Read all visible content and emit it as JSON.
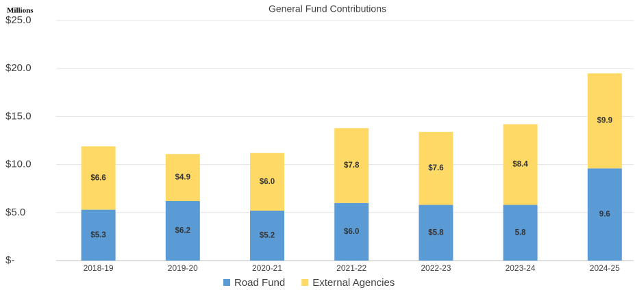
{
  "chart_data": {
    "type": "stacked_bar",
    "title": "General Fund Contributions",
    "y_axis_label": "Millions",
    "categories": [
      "2018-19",
      "2019-20",
      "2020-21",
      "2021-22",
      "2022-23",
      "2023-24",
      "2024-25"
    ],
    "series": [
      {
        "name": "Road Fund",
        "color": "#5b9bd5",
        "values": [
          5.3,
          6.2,
          5.2,
          6.0,
          5.8,
          5.8,
          9.6
        ],
        "value_labels": [
          "$5.3",
          "$6.2",
          "$5.2",
          "$6.0",
          "$5.8",
          "5.8",
          "9.6"
        ]
      },
      {
        "name": "External Agencies",
        "color": "#ffd966",
        "values": [
          6.6,
          4.9,
          6.0,
          7.8,
          7.6,
          8.4,
          9.9
        ],
        "value_labels": [
          "$6.6",
          "$4.9",
          "$6.0",
          "$7.8",
          "$7.6",
          "$8.4",
          "$9.9"
        ]
      }
    ],
    "ylim": [
      0,
      25
    ],
    "yticks": [
      {
        "value": 0,
        "label": "$-"
      },
      {
        "value": 5,
        "label": "$5.0"
      },
      {
        "value": 10,
        "label": "$10.0"
      },
      {
        "value": 15,
        "label": "$15.0"
      },
      {
        "value": 20,
        "label": "$20.0"
      },
      {
        "value": 25,
        "label": "$25.0"
      }
    ],
    "grid": true,
    "legend": "bottom"
  }
}
